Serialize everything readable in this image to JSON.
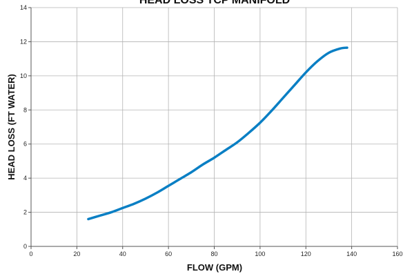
{
  "chart_data": {
    "type": "line",
    "title": "HEAD LOSS TCP MANIFOLD",
    "xlabel": "FLOW (GPM)",
    "ylabel": "HEAD LOSS (FT WATER)",
    "xlim": [
      0,
      160
    ],
    "ylim": [
      0,
      14
    ],
    "xticks": [
      0,
      20,
      40,
      60,
      80,
      100,
      120,
      140,
      160
    ],
    "yticks": [
      0,
      2,
      4,
      6,
      8,
      10,
      12,
      14
    ],
    "grid": true,
    "series": [
      {
        "color": "#0a7fc4",
        "x": [
          25,
          30,
          35,
          40,
          45,
          50,
          55,
          60,
          65,
          70,
          75,
          80,
          85,
          90,
          95,
          100,
          105,
          110,
          115,
          120,
          125,
          130,
          135,
          138
        ],
        "y": [
          1.6,
          1.8,
          2.0,
          2.25,
          2.5,
          2.8,
          3.15,
          3.55,
          3.95,
          4.35,
          4.8,
          5.2,
          5.65,
          6.1,
          6.65,
          7.25,
          7.95,
          8.7,
          9.45,
          10.2,
          10.85,
          11.35,
          11.6,
          11.65
        ]
      }
    ]
  }
}
